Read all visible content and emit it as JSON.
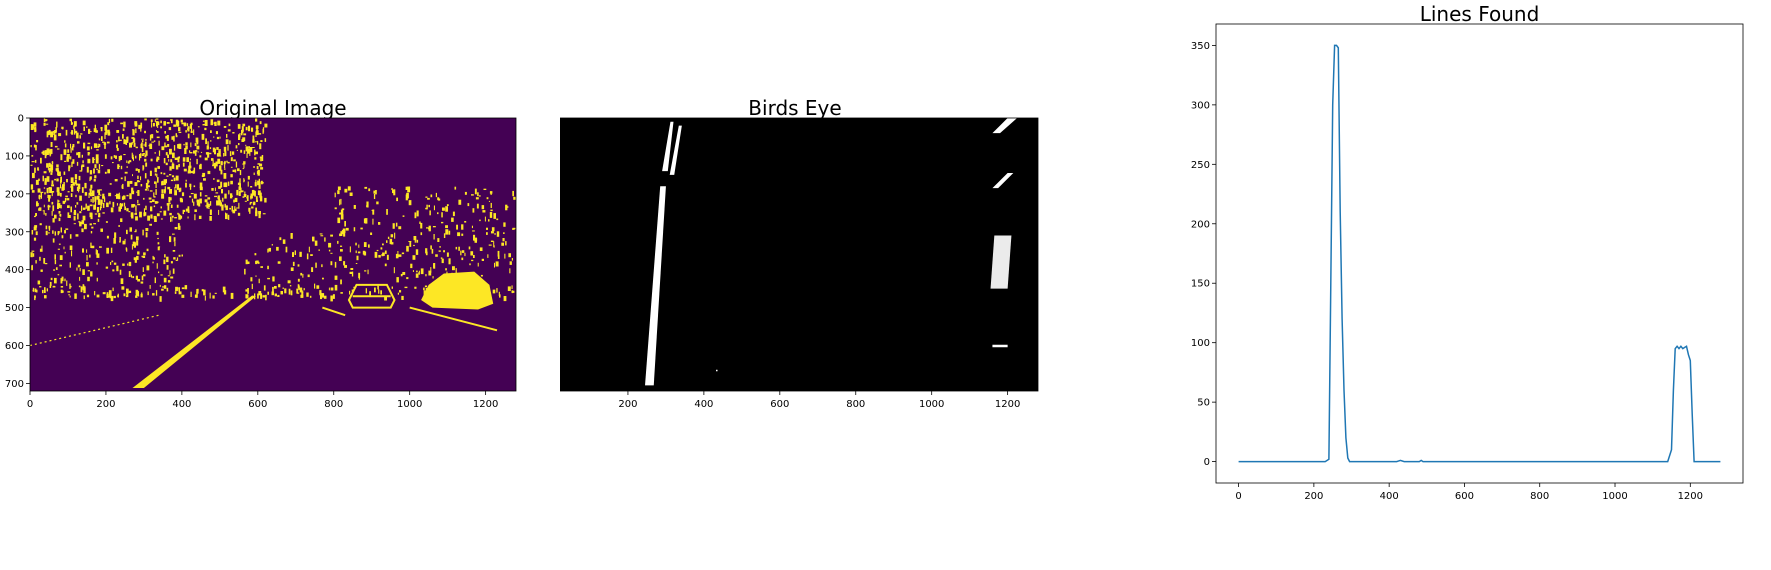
{
  "colors": {
    "viridis_dark": "#440154",
    "viridis_yellow": "#fde725",
    "line_blue": "#1f77b4",
    "binary_black": "#000000",
    "binary_white": "#ffffff"
  },
  "chart_data": [
    {
      "type": "heatmap",
      "title": "Original Image",
      "xlabel": "",
      "ylabel": "",
      "xlim": [
        0,
        1280
      ],
      "ylim": [
        720,
        0
      ],
      "xticks": [
        "0",
        "200",
        "400",
        "600",
        "800",
        "1000",
        "1200"
      ],
      "yticks": [
        "0",
        "100",
        "200",
        "300",
        "400",
        "500",
        "600",
        "700"
      ],
      "colormap": "viridis",
      "grid": false,
      "description_features": {
        "left_lane_line": [
          [
            285,
            710
          ],
          [
            590,
            470
          ]
        ],
        "right_lane_line": [
          [
            770,
            470
          ],
          [
            1000,
            570
          ]
        ],
        "car_1_center": [
          1110,
          455
        ],
        "car_2_center": [
          900,
          465
        ]
      }
    },
    {
      "type": "heatmap",
      "title": "Birds Eye",
      "xlabel": "",
      "ylabel": "",
      "xlim": [
        0,
        1280
      ],
      "ylim": [
        720,
        0
      ],
      "xticks": [
        "0",
        "200",
        "400",
        "600",
        "800",
        "1000",
        "1200"
      ],
      "yticks": [
        "0",
        "100",
        "200",
        "300",
        "400",
        "500",
        "600",
        "700"
      ],
      "colormap": "gray",
      "grid": false,
      "description_features": {
        "left_lane_x_range": [
          240,
          340
        ],
        "right_lane_x_range": [
          1140,
          1230
        ]
      }
    },
    {
      "type": "line",
      "title": "Lines Found",
      "xlabel": "",
      "ylabel": "",
      "xlim": [
        -60,
        1340
      ],
      "ylim": [
        -18,
        368
      ],
      "xticks": [
        0,
        200,
        400,
        600,
        800,
        1000,
        1200
      ],
      "yticks": [
        0,
        50,
        100,
        150,
        200,
        250,
        300,
        350
      ],
      "grid": false,
      "series": [
        {
          "x": [
            0,
            230,
            240,
            245,
            250,
            255,
            260,
            265,
            270,
            275,
            280,
            285,
            290,
            295,
            300,
            420,
            430,
            440,
            480,
            485,
            490,
            1140,
            1150,
            1155,
            1160,
            1165,
            1170,
            1175,
            1180,
            1185,
            1190,
            1195,
            1200,
            1205,
            1210,
            1280
          ],
          "values": [
            0,
            0,
            2,
            150,
            300,
            350,
            350,
            348,
            210,
            120,
            60,
            20,
            3,
            0,
            0,
            0,
            1,
            0,
            0,
            1,
            0,
            0,
            10,
            60,
            95,
            97,
            95,
            97,
            95,
            96,
            97,
            90,
            85,
            40,
            0,
            0
          ]
        }
      ]
    }
  ]
}
